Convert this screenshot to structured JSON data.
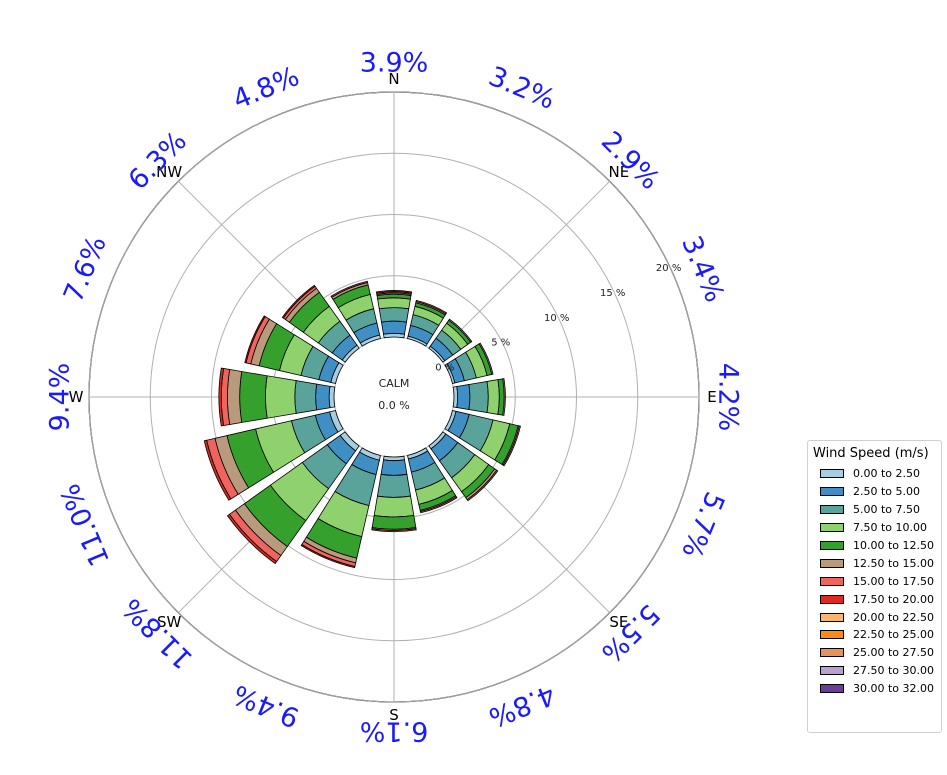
{
  "chart_data": {
    "type": "windrose",
    "title": "",
    "calm_label": "CALM",
    "calm_value": "0.0 %",
    "cardinal_labels": [
      "N",
      "NE",
      "E",
      "SE",
      "S",
      "SW",
      "W",
      "NW"
    ],
    "radial_ticks": [
      5,
      10,
      15,
      20
    ],
    "radial_tick_labels": [
      "0 %",
      "5 %",
      "10 %",
      "15 %",
      "20 %"
    ],
    "rmax": 20,
    "direction_percent_labels": [
      "3.9%",
      "3.2%",
      "2.9%",
      "3.4%",
      "4.2%",
      "5.7%",
      "5.5%",
      "4.8%",
      "6.1%",
      "9.4%",
      "11.8%",
      "11.0%",
      "9.4%",
      "7.6%",
      "6.3%",
      "4.8%"
    ],
    "directions": [
      "N",
      "NNE",
      "NE",
      "ENE",
      "E",
      "ESE",
      "SE",
      "SSE",
      "S",
      "SSW",
      "SW",
      "WSW",
      "W",
      "WNW",
      "NW",
      "NNW"
    ],
    "legend_title": "Wind Speed (m/s)",
    "bins": [
      {
        "label": "0.00 to 2.50",
        "color": "#a6cee3"
      },
      {
        "label": "2.50 to 5.00",
        "color": "#3f8fc4"
      },
      {
        "label": "5.00 to 7.50",
        "color": "#5aa39b"
      },
      {
        "label": "7.50 to 10.00",
        "color": "#8fd16d"
      },
      {
        "label": "10.00 to 12.50",
        "color": "#35a02c"
      },
      {
        "label": "12.50 to 15.00",
        "color": "#b99a7c"
      },
      {
        "label": "15.00 to 17.50",
        "color": "#f0645f"
      },
      {
        "label": "17.50 to 20.00",
        "color": "#e0281e"
      },
      {
        "label": "20.00 to 22.50",
        "color": "#fdb46b"
      },
      {
        "label": "22.50 to 25.00",
        "color": "#fe8a15"
      },
      {
        "label": "25.00 to 27.50",
        "color": "#e6935b"
      },
      {
        "label": "27.50 to 30.00",
        "color": "#b9a0cf"
      },
      {
        "label": "30.00 to 32.00",
        "color": "#6a3d9a"
      }
    ],
    "series": [
      [
        0.3,
        1.0,
        1.1,
        0.8,
        0.3,
        0.1,
        0.1,
        0.1,
        0,
        0,
        0,
        0,
        0
      ],
      [
        0.2,
        0.9,
        0.9,
        0.7,
        0.3,
        0.1,
        0.1,
        0,
        0,
        0,
        0,
        0,
        0
      ],
      [
        0.2,
        0.8,
        0.8,
        0.7,
        0.3,
        0.1,
        0,
        0,
        0,
        0,
        0,
        0,
        0
      ],
      [
        0.2,
        0.8,
        1.0,
        0.9,
        0.4,
        0.1,
        0,
        0,
        0,
        0,
        0,
        0,
        0
      ],
      [
        0.3,
        1.0,
        1.5,
        0.9,
        0.4,
        0.1,
        0,
        0,
        0,
        0,
        0,
        0,
        0
      ],
      [
        0.3,
        1.1,
        2.0,
        1.4,
        0.7,
        0.1,
        0.1,
        0,
        0,
        0,
        0,
        0,
        0
      ],
      [
        0.3,
        1.2,
        1.7,
        1.4,
        0.6,
        0.2,
        0.1,
        0,
        0,
        0,
        0,
        0,
        0
      ],
      [
        0.3,
        1.1,
        1.5,
        1.2,
        0.5,
        0.1,
        0.1,
        0,
        0,
        0,
        0,
        0,
        0
      ],
      [
        0.3,
        1.2,
        1.8,
        1.6,
        1.0,
        0.1,
        0.1,
        0,
        0,
        0,
        0,
        0,
        0
      ],
      [
        0.4,
        1.2,
        2.6,
        2.6,
        1.8,
        0.4,
        0.3,
        0.1,
        0,
        0,
        0,
        0,
        0
      ],
      [
        0.5,
        1.3,
        2.5,
        3.2,
        2.6,
        0.9,
        0.6,
        0.2,
        0,
        0,
        0,
        0,
        0
      ],
      [
        0.5,
        1.2,
        2.0,
        3.0,
        2.4,
        1.0,
        0.7,
        0.2,
        0,
        0,
        0,
        0,
        0
      ],
      [
        0.4,
        1.1,
        1.7,
        2.4,
        2.1,
        1.0,
        0.5,
        0.2,
        0,
        0,
        0,
        0,
        0
      ],
      [
        0.4,
        1.0,
        1.5,
        1.8,
        1.7,
        0.7,
        0.4,
        0.1,
        0,
        0,
        0,
        0,
        0
      ],
      [
        0.3,
        1.0,
        1.4,
        1.5,
        1.4,
        0.4,
        0.2,
        0.1,
        0,
        0,
        0,
        0,
        0
      ],
      [
        0.3,
        1.0,
        1.2,
        1.2,
        0.8,
        0.2,
        0.1,
        0,
        0,
        0,
        0,
        0,
        0
      ]
    ]
  }
}
